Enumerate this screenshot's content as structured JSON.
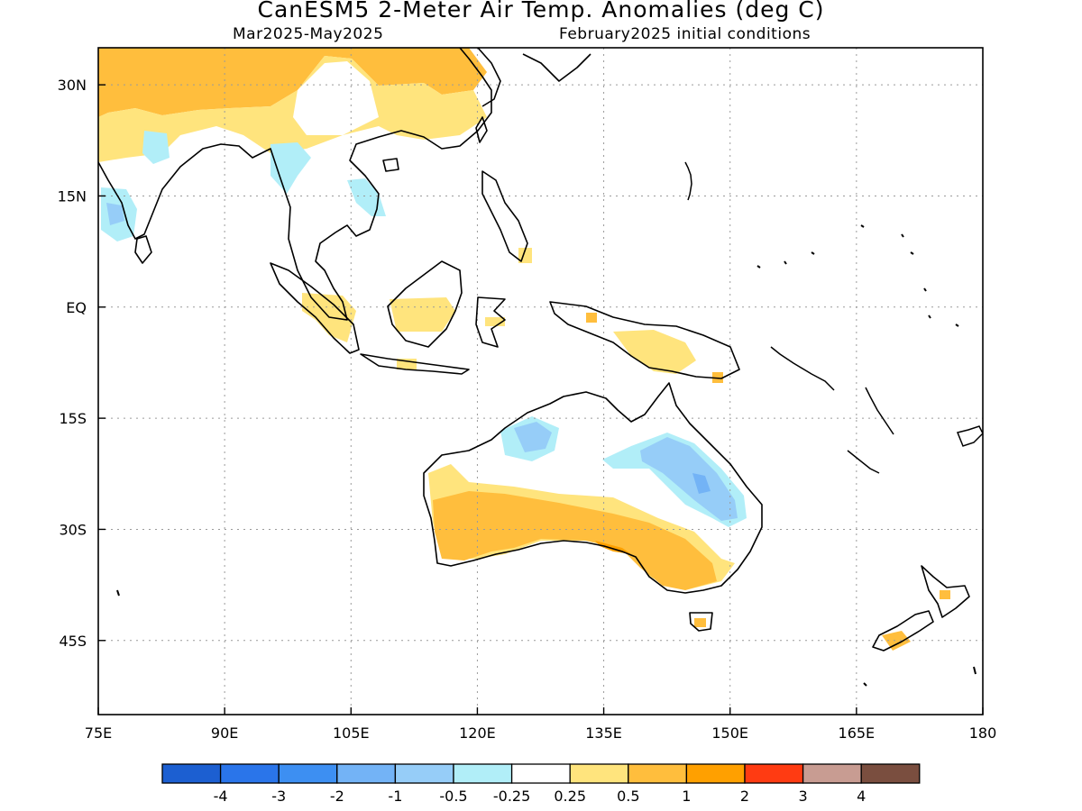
{
  "header": {
    "title": "CanESM5 2-Meter Air Temp. Anomalies (deg C)",
    "period": "Mar2025-May2025",
    "init": "February2025 initial conditions"
  },
  "axes": {
    "lat_labels": [
      "30N",
      "15N",
      "EQ",
      "15S",
      "30S",
      "45S"
    ],
    "lat_values": [
      30,
      15,
      0,
      -15,
      -30,
      -45
    ],
    "lon_labels": [
      "75E",
      "90E",
      "105E",
      "120E",
      "135E",
      "150E",
      "165E",
      "180"
    ],
    "lon_values": [
      75,
      90,
      105,
      120,
      135,
      150,
      165,
      180
    ],
    "lat_range": [
      -55,
      35
    ],
    "lon_range": [
      75,
      180
    ]
  },
  "colorbar": {
    "labels": [
      "-4",
      "-3",
      "-2",
      "-1",
      "-0.5",
      "-0.25",
      "0.25",
      "0.5",
      "1",
      "2",
      "3",
      "4"
    ],
    "colors": [
      "#1c5fd1",
      "#2a75ea",
      "#3d8ff2",
      "#73b3f6",
      "#96cdf8",
      "#b1eef8",
      "#ffffff",
      "#ffe47d",
      "#ffbe3d",
      "#ffa000",
      "#ff3b12",
      "#c89c92",
      "#7a4e3f"
    ]
  },
  "map": {
    "coastline_color": "#000000",
    "grid_color": "#9a9a9a",
    "anomaly_regions": [
      {
        "name": "china-tibet-warm",
        "level": "1"
      },
      {
        "name": "mongolia-warm",
        "level": "0.5"
      },
      {
        "name": "india-cool",
        "level": "-0.25"
      },
      {
        "name": "indochina-cool",
        "level": "-0.25"
      },
      {
        "name": "sumatra-warm",
        "level": "0.25"
      },
      {
        "name": "borneo-warm",
        "level": "0.25"
      },
      {
        "name": "new-guinea-warm",
        "level": "0.25"
      },
      {
        "name": "west-south-australia-warm",
        "level": "0.5"
      },
      {
        "name": "south-australia-strong-warm",
        "level": "1"
      },
      {
        "name": "queensland-cool",
        "level": "-0.5"
      },
      {
        "name": "kimberley-cool",
        "level": "-0.5"
      },
      {
        "name": "new-zealand-warm",
        "level": "0.5"
      }
    ]
  }
}
